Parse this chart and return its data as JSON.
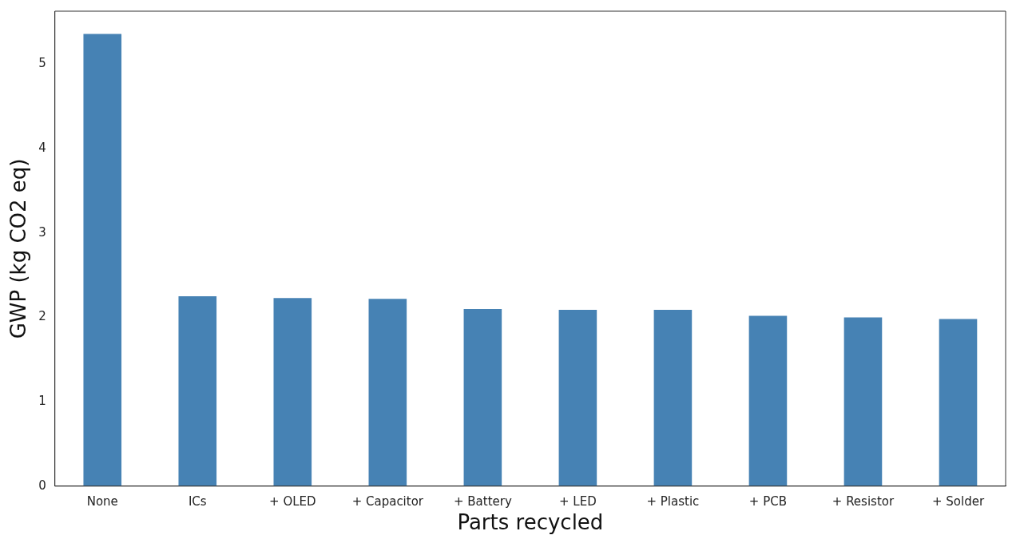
{
  "chart_data": {
    "type": "bar",
    "xlabel": "Parts recycled",
    "ylabel": "GWP (kg CO2 eq)",
    "categories": [
      "None",
      "ICs",
      "+ OLED",
      "+ Capacitor",
      "+ Battery",
      "+ LED",
      "+ Plastic",
      "+ PCB",
      "+ Resistor",
      "+ Solder"
    ],
    "values": [
      5.36,
      2.25,
      2.23,
      2.22,
      2.1,
      2.09,
      2.09,
      2.02,
      2.0,
      1.98
    ],
    "color": "#4682b4",
    "ylim": [
      0,
      5.63
    ],
    "yticks": [
      0,
      1,
      2,
      3,
      4,
      5
    ],
    "grid": false,
    "legend": false
  }
}
